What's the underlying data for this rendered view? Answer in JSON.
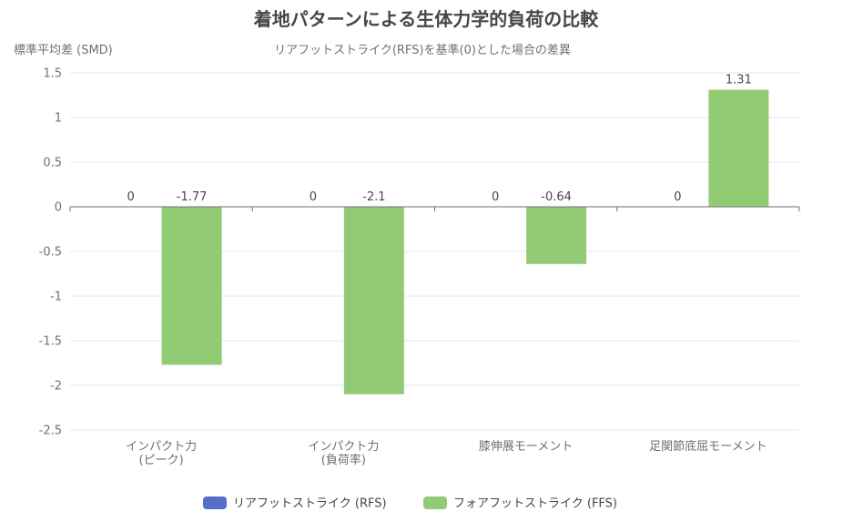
{
  "chart_data": {
    "type": "bar",
    "title": "着地パターンによる生体力学的負荷の比較",
    "subtitle": "リアフットストライク(RFS)を基準(0)とした場合の差異",
    "ylabel": "標準平均差 (SMD)",
    "xlabel": "",
    "ylim": [
      -2.5,
      1.5
    ],
    "yticks": [
      1.5,
      1,
      0.5,
      0,
      -0.5,
      -1,
      -1.5,
      -2,
      -2.5
    ],
    "ytick_labels": [
      "1.5",
      "1",
      "0.5",
      "0",
      "-0.5",
      "-1",
      "-1.5",
      "-2",
      "-2.5"
    ],
    "grid": true,
    "legend_position": "bottom-center",
    "categories": [
      [
        "インパクト力",
        "(ピーク)"
      ],
      [
        "インパクト力",
        "(負荷率)"
      ],
      [
        "膝伸展モーメント"
      ],
      [
        "足関節底屈モーメント"
      ]
    ],
    "series": [
      {
        "name": "リアフットストライク (RFS)",
        "color": "#5470c6",
        "values": [
          0,
          0,
          0,
          0
        ],
        "labels": [
          "0",
          "0",
          "0",
          "0"
        ]
      },
      {
        "name": "フォアフットストライク (FFS)",
        "color": "#91cc75",
        "values": [
          -1.77,
          -2.1,
          -0.64,
          1.31
        ],
        "labels": [
          "-1.77",
          "-2.1",
          "-0.64",
          "1.31"
        ]
      }
    ]
  }
}
